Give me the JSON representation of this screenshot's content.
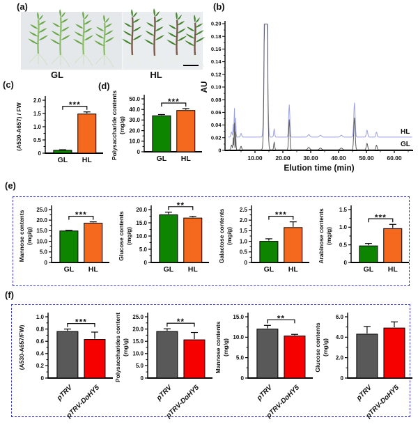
{
  "colors": {
    "green": "#0e8500",
    "orange": "#f4691e",
    "gray": "#595959",
    "red": "#f60000",
    "trace_hl": "#9aa0e0",
    "trace_gl": "#5c5c5c",
    "box_border": "#3b3bd1",
    "photo_bg": "#e4e8ea",
    "gl_leaf": "#6aa648",
    "gl_stem": "#8fbf70",
    "gl_root": "#cfe0c2",
    "hl_leaf": "#44822d",
    "hl_stem": "#7b5b4e",
    "hl_root": "#e8efe2"
  },
  "panels": {
    "a": {
      "label": "(a)",
      "group_labels": [
        "GL",
        "HL"
      ]
    },
    "b": {
      "label": "(b)"
    },
    "c": {
      "label": "(c)"
    },
    "d": {
      "label": "(d)"
    },
    "e": {
      "label": "(e)"
    },
    "f": {
      "label": "(f)"
    }
  },
  "chart_data": [
    {
      "id": "b",
      "type": "line",
      "xlabel": "Elution time (min)",
      "ylabel": "AU",
      "ylim": [
        0,
        0.2
      ],
      "xlim": [
        0,
        66
      ],
      "yticks": [
        0,
        0.02,
        0.04,
        0.06,
        0.08,
        0.1,
        0.12,
        0.14,
        0.16,
        0.18,
        0.2
      ],
      "ytick_labels": [
        "0",
        "0.02",
        "0.04",
        "0.06",
        "0.08",
        "0.10",
        "0.12",
        "0.14",
        "0.16",
        "0.18",
        "0.20"
      ],
      "xticks": [
        10,
        20,
        30,
        40,
        50,
        60
      ],
      "xtick_labels": [
        "10.00",
        "20.00",
        "30.00",
        "40.00",
        "50.00",
        "60.00"
      ],
      "series": [
        {
          "name": "HL",
          "color_key": "trace_hl",
          "baseline": 0.021,
          "scale": 1.0
        },
        {
          "name": "GL",
          "color_key": "trace_gl",
          "baseline": 0.001,
          "scale": 0.93
        }
      ],
      "peaks": [
        {
          "t": 1.6,
          "h": 0.008,
          "w": 0.3
        },
        {
          "t": 2.2,
          "h": 0.02,
          "w": 0.15
        },
        {
          "t": 2.6,
          "h": 0.054,
          "w": 0.12
        },
        {
          "t": 3.1,
          "h": 0.03,
          "w": 0.12
        },
        {
          "t": 5.0,
          "h": 0.006,
          "w": 0.3
        },
        {
          "t": 13.9,
          "h": 0.6,
          "w": 0.55
        },
        {
          "t": 16.9,
          "h": 0.013,
          "w": 0.25
        },
        {
          "t": 22.3,
          "h": 0.051,
          "w": 0.3
        },
        {
          "t": 29.3,
          "h": 0.004,
          "w": 0.5
        },
        {
          "t": 33.5,
          "h": 0.003,
          "w": 0.5
        },
        {
          "t": 41.0,
          "h": 0.003,
          "w": 0.5
        },
        {
          "t": 45.7,
          "h": 0.054,
          "w": 0.35
        },
        {
          "t": 50.2,
          "h": 0.011,
          "w": 0.35
        },
        {
          "t": 53.6,
          "h": 0.008,
          "w": 0.3
        }
      ]
    },
    {
      "id": "c",
      "type": "bar",
      "ylabel_lines": [
        "(A530-A657) / FW"
      ],
      "ylim": [
        0,
        2.0
      ],
      "yticks": [
        0,
        0.5,
        1.0,
        1.5,
        2.0
      ],
      "ytick_labels": [
        "0",
        "0.5",
        "1.0",
        "1.5",
        "2.0"
      ],
      "categories": [
        "GL",
        "HL"
      ],
      "values": [
        0.11,
        1.48
      ],
      "errors": [
        0.02,
        0.08
      ],
      "bar_colors": [
        "green",
        "orange"
      ],
      "sig": "***",
      "rotated_labels": false
    },
    {
      "id": "d",
      "type": "bar",
      "ylabel_lines": [
        "Polysaccharide contents",
        "(mg/g)"
      ],
      "ylim": [
        0,
        50
      ],
      "yticks": [
        0,
        10,
        20,
        30,
        40,
        50
      ],
      "ytick_labels": [
        "0",
        "10.0",
        "20.0",
        "30.0",
        "40.0",
        "50.0"
      ],
      "categories": [
        "GL",
        "HL"
      ],
      "values": [
        34,
        39
      ],
      "errors": [
        1.2,
        1.8
      ],
      "bar_colors": [
        "green",
        "orange"
      ],
      "sig": "***",
      "rotated_labels": false
    },
    {
      "id": "e1",
      "type": "bar",
      "ylabel_lines": [
        "Mannose contents",
        "(mg/g)"
      ],
      "ylim": [
        0,
        25
      ],
      "yticks": [
        0,
        5,
        10,
        15,
        20,
        25
      ],
      "ytick_labels": [
        "0",
        "5.0",
        "10.0",
        "15.0",
        "20.0",
        "25.0"
      ],
      "categories": [
        "GL",
        "HL"
      ],
      "values": [
        14.9,
        18.6
      ],
      "errors": [
        0.3,
        0.6
      ],
      "bar_colors": [
        "green",
        "orange"
      ],
      "sig": "***",
      "rotated_labels": false
    },
    {
      "id": "e2",
      "type": "bar",
      "ylabel_lines": [
        "Glucose contents",
        "(mg/g)"
      ],
      "ylim": [
        0,
        20
      ],
      "yticks": [
        0,
        5,
        10,
        15,
        20
      ],
      "ytick_labels": [
        "0",
        "5.0",
        "10.0",
        "15.0",
        "20.0"
      ],
      "categories": [
        "GL",
        "HL"
      ],
      "values": [
        18.0,
        16.8
      ],
      "errors": [
        1.0,
        0.6
      ],
      "bar_colors": [
        "green",
        "orange"
      ],
      "sig": "**",
      "rotated_labels": false
    },
    {
      "id": "e3",
      "type": "bar",
      "ylabel_lines": [
        "Galactose contents",
        "(mg/g)"
      ],
      "ylim": [
        0,
        2.5
      ],
      "yticks": [
        0,
        0.5,
        1.0,
        1.5,
        2.0,
        2.5
      ],
      "ytick_labels": [
        "0",
        "0.5",
        "1.0",
        "1.5",
        "2.0",
        "2.5"
      ],
      "categories": [
        "GL",
        "HL"
      ],
      "values": [
        1.0,
        1.65
      ],
      "errors": [
        0.12,
        0.27
      ],
      "bar_colors": [
        "green",
        "orange"
      ],
      "sig": "***",
      "rotated_labels": false
    },
    {
      "id": "e4",
      "type": "bar",
      "ylabel_lines": [
        "Arabinose contents",
        "(mg/g)"
      ],
      "ylim": [
        0,
        1.5
      ],
      "yticks": [
        0,
        0.5,
        1.0,
        1.5
      ],
      "ytick_labels": [
        "0",
        "0.5",
        "1.0",
        "1.5"
      ],
      "categories": [
        "GL",
        "HL"
      ],
      "values": [
        0.47,
        0.96
      ],
      "errors": [
        0.07,
        0.12
      ],
      "bar_colors": [
        "green",
        "orange"
      ],
      "sig": "***",
      "rotated_labels": false
    },
    {
      "id": "f1",
      "type": "bar",
      "ylabel_lines": [
        "(A530-A657/FW)"
      ],
      "ylim": [
        0,
        1.0
      ],
      "yticks": [
        0,
        0.2,
        0.4,
        0.6,
        0.8,
        1.0
      ],
      "ytick_labels": [
        "0",
        "0.2",
        "0.4",
        "0.6",
        "0.8",
        "1.0"
      ],
      "categories": [
        "pTRV",
        "pTRV-DoHY5"
      ],
      "values": [
        0.76,
        0.63
      ],
      "errors": [
        0.04,
        0.12
      ],
      "bar_colors": [
        "gray",
        "red"
      ],
      "sig": "***",
      "rotated_labels": true
    },
    {
      "id": "f2",
      "type": "bar",
      "ylabel_lines": [
        "Polysaccharides content",
        "(mg/g)"
      ],
      "ylim": [
        0,
        25
      ],
      "yticks": [
        0,
        5,
        10,
        15,
        20,
        25
      ],
      "ytick_labels": [
        "0",
        "5.0",
        "10.0",
        "15.0",
        "20.0",
        "25.0"
      ],
      "categories": [
        "pTRV",
        "pTRV-DoHY5"
      ],
      "values": [
        19.0,
        15.6
      ],
      "errors": [
        1.1,
        3.0
      ],
      "bar_colors": [
        "gray",
        "red"
      ],
      "sig": "**",
      "rotated_labels": true
    },
    {
      "id": "f3",
      "type": "bar",
      "ylabel_lines": [
        "Mannose contents",
        "(mg/g)"
      ],
      "ylim": [
        0,
        15
      ],
      "yticks": [
        0,
        5,
        10,
        15
      ],
      "ytick_labels": [
        "0",
        "5.0",
        "10.0",
        "15.0"
      ],
      "categories": [
        "pTRV",
        "pTRV-DoHY5"
      ],
      "values": [
        12.0,
        10.3
      ],
      "errors": [
        0.9,
        0.4
      ],
      "bar_colors": [
        "gray",
        "red"
      ],
      "sig": "**",
      "rotated_labels": true
    },
    {
      "id": "f4",
      "type": "bar",
      "ylabel_lines": [
        "Glucose contents",
        "(mg/g)"
      ],
      "ylim": [
        0,
        6
      ],
      "yticks": [
        0,
        2,
        4,
        6
      ],
      "ytick_labels": [
        "0",
        "2.0",
        "4.0",
        "6.0"
      ],
      "categories": [
        "pTRV",
        "pTRV-DoHY5"
      ],
      "values": [
        4.3,
        4.9
      ],
      "errors": [
        0.75,
        0.6
      ],
      "bar_colors": [
        "gray",
        "red"
      ],
      "sig": null,
      "rotated_labels": true
    }
  ]
}
